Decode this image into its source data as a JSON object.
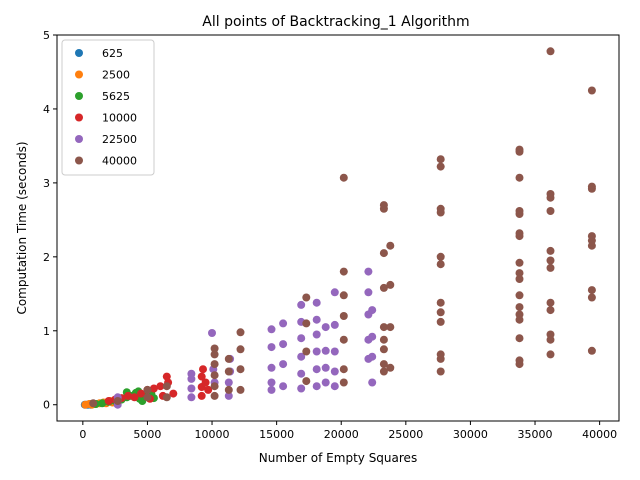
{
  "chart_data": {
    "type": "scatter",
    "title": "All points of Backtracking_1 Algorithm",
    "xlabel": "Number of Empty Squares",
    "ylabel": "Computation Time (seconds)",
    "xlim": [
      -2000,
      41500
    ],
    "ylim": [
      -0.22,
      5.0
    ],
    "xticks": [
      0,
      5000,
      10000,
      15000,
      20000,
      25000,
      30000,
      35000,
      40000
    ],
    "yticks": [
      0,
      1,
      2,
      3,
      4,
      5
    ],
    "grid": false,
    "legend_position": "top-left",
    "series": [
      {
        "name": "625",
        "color": "#1f77b4",
        "points": [
          [
            150,
            0.0
          ],
          [
            300,
            0.0
          ],
          [
            400,
            0.0
          ],
          [
            550,
            0.01
          ],
          [
            600,
            0.0
          ]
        ]
      },
      {
        "name": "2500",
        "color": "#ff7f0e",
        "points": [
          [
            200,
            0.0
          ],
          [
            500,
            0.01
          ],
          [
            700,
            0.0
          ],
          [
            1000,
            0.01
          ],
          [
            1300,
            0.02
          ],
          [
            1600,
            0.03
          ],
          [
            1800,
            0.02
          ],
          [
            2100,
            0.05
          ],
          [
            2300,
            0.03
          ],
          [
            2450,
            0.06
          ]
        ]
      },
      {
        "name": "5625",
        "color": "#2ca02c",
        "points": [
          [
            1000,
            0.01
          ],
          [
            1500,
            0.02
          ],
          [
            2000,
            0.04
          ],
          [
            2500,
            0.05
          ],
          [
            3000,
            0.07
          ],
          [
            3400,
            0.1
          ],
          [
            3400,
            0.17
          ],
          [
            3700,
            0.12
          ],
          [
            4100,
            0.16
          ],
          [
            4300,
            0.18
          ],
          [
            4400,
            0.08
          ],
          [
            4600,
            0.05
          ],
          [
            4800,
            0.1
          ],
          [
            5000,
            0.12
          ],
          [
            5300,
            0.15
          ],
          [
            5500,
            0.09
          ]
        ]
      },
      {
        "name": "10000",
        "color": "#d62728",
        "points": [
          [
            2000,
            0.05
          ],
          [
            2500,
            0.07
          ],
          [
            3000,
            0.09
          ],
          [
            3500,
            0.12
          ],
          [
            4000,
            0.1
          ],
          [
            4500,
            0.15
          ],
          [
            5000,
            0.2
          ],
          [
            5200,
            0.08
          ],
          [
            5500,
            0.22
          ],
          [
            6000,
            0.25
          ],
          [
            6200,
            0.12
          ],
          [
            6500,
            0.38
          ],
          [
            6600,
            0.3
          ],
          [
            7000,
            0.15
          ],
          [
            9200,
            0.12
          ],
          [
            9200,
            0.24
          ],
          [
            9200,
            0.38
          ],
          [
            9300,
            0.48
          ],
          [
            9500,
            0.3
          ],
          [
            9700,
            0.2
          ]
        ]
      },
      {
        "name": "22500",
        "color": "#9467bd",
        "points": [
          [
            2700,
            0.0
          ],
          [
            2700,
            0.05
          ],
          [
            2700,
            0.1
          ],
          [
            8400,
            0.1
          ],
          [
            8400,
            0.22
          ],
          [
            8400,
            0.35
          ],
          [
            8400,
            0.42
          ],
          [
            10000,
            0.97
          ],
          [
            10100,
            0.48
          ],
          [
            10200,
            0.3
          ],
          [
            11300,
            0.12
          ],
          [
            11300,
            0.3
          ],
          [
            11400,
            0.45
          ],
          [
            11400,
            0.62
          ],
          [
            14600,
            0.2
          ],
          [
            14600,
            0.3
          ],
          [
            14600,
            0.5
          ],
          [
            14600,
            0.78
          ],
          [
            14600,
            1.02
          ],
          [
            15500,
            0.25
          ],
          [
            15500,
            0.55
          ],
          [
            15500,
            0.82
          ],
          [
            15500,
            1.1
          ],
          [
            16900,
            0.22
          ],
          [
            16900,
            0.42
          ],
          [
            16900,
            0.65
          ],
          [
            16900,
            0.9
          ],
          [
            16900,
            1.12
          ],
          [
            16900,
            1.35
          ],
          [
            18100,
            0.25
          ],
          [
            18100,
            0.48
          ],
          [
            18100,
            0.72
          ],
          [
            18100,
            0.95
          ],
          [
            18100,
            1.15
          ],
          [
            18100,
            1.38
          ],
          [
            18800,
            0.3
          ],
          [
            18800,
            0.5
          ],
          [
            18800,
            0.73
          ],
          [
            18800,
            1.05
          ],
          [
            19500,
            0.25
          ],
          [
            19500,
            0.45
          ],
          [
            19500,
            0.72
          ],
          [
            19500,
            1.08
          ],
          [
            19500,
            1.52
          ],
          [
            22100,
            0.62
          ],
          [
            22100,
            0.88
          ],
          [
            22100,
            1.22
          ],
          [
            22100,
            1.52
          ],
          [
            22100,
            1.8
          ],
          [
            22400,
            0.3
          ],
          [
            22400,
            0.65
          ],
          [
            22400,
            0.92
          ],
          [
            22400,
            1.28
          ]
        ]
      },
      {
        "name": "40000",
        "color": "#8c564b",
        "points": [
          [
            800,
            0.02
          ],
          [
            2700,
            0.05
          ],
          [
            5000,
            0.1
          ],
          [
            5000,
            0.2
          ],
          [
            6500,
            0.1
          ],
          [
            6500,
            0.25
          ],
          [
            10200,
            0.12
          ],
          [
            10200,
            0.25
          ],
          [
            10200,
            0.4
          ],
          [
            10200,
            0.55
          ],
          [
            10200,
            0.68
          ],
          [
            10200,
            0.76
          ],
          [
            11300,
            0.2
          ],
          [
            11300,
            0.45
          ],
          [
            11300,
            0.62
          ],
          [
            12200,
            0.2
          ],
          [
            12200,
            0.48
          ],
          [
            12200,
            0.75
          ],
          [
            12200,
            0.98
          ],
          [
            17300,
            0.32
          ],
          [
            17300,
            0.72
          ],
          [
            17300,
            1.1
          ],
          [
            17300,
            1.45
          ],
          [
            20200,
            0.3
          ],
          [
            20200,
            0.48
          ],
          [
            20200,
            0.88
          ],
          [
            20200,
            1.2
          ],
          [
            20200,
            1.48
          ],
          [
            20200,
            1.8
          ],
          [
            20200,
            3.07
          ],
          [
            23300,
            0.45
          ],
          [
            23300,
            0.55
          ],
          [
            23300,
            0.75
          ],
          [
            23300,
            0.88
          ],
          [
            23300,
            1.05
          ],
          [
            23300,
            1.58
          ],
          [
            23300,
            2.05
          ],
          [
            23300,
            2.65
          ],
          [
            23300,
            2.7
          ],
          [
            23800,
            0.5
          ],
          [
            23800,
            1.05
          ],
          [
            23800,
            1.62
          ],
          [
            23800,
            2.15
          ],
          [
            27700,
            0.45
          ],
          [
            27700,
            0.62
          ],
          [
            27700,
            0.68
          ],
          [
            27700,
            1.12
          ],
          [
            27700,
            1.25
          ],
          [
            27700,
            1.38
          ],
          [
            27700,
            1.9
          ],
          [
            27700,
            2.0
          ],
          [
            27700,
            2.6
          ],
          [
            27700,
            2.65
          ],
          [
            27700,
            3.22
          ],
          [
            27700,
            3.32
          ],
          [
            33800,
            0.55
          ],
          [
            33800,
            0.6
          ],
          [
            33800,
            0.9
          ],
          [
            33800,
            1.15
          ],
          [
            33800,
            1.22
          ],
          [
            33800,
            1.32
          ],
          [
            33800,
            1.48
          ],
          [
            33800,
            1.7
          ],
          [
            33800,
            1.78
          ],
          [
            33800,
            1.92
          ],
          [
            33800,
            2.28
          ],
          [
            33800,
            2.32
          ],
          [
            33800,
            2.58
          ],
          [
            33800,
            2.62
          ],
          [
            33800,
            3.07
          ],
          [
            33800,
            3.42
          ],
          [
            33800,
            3.45
          ],
          [
            36200,
            0.68
          ],
          [
            36200,
            0.88
          ],
          [
            36200,
            0.95
          ],
          [
            36200,
            1.28
          ],
          [
            36200,
            1.38
          ],
          [
            36200,
            1.85
          ],
          [
            36200,
            1.95
          ],
          [
            36200,
            2.08
          ],
          [
            36200,
            2.62
          ],
          [
            36200,
            2.8
          ],
          [
            36200,
            2.85
          ],
          [
            36200,
            4.78
          ],
          [
            39400,
            0.73
          ],
          [
            39400,
            1.45
          ],
          [
            39400,
            1.55
          ],
          [
            39400,
            2.15
          ],
          [
            39400,
            2.22
          ],
          [
            39400,
            2.28
          ],
          [
            39400,
            2.92
          ],
          [
            39400,
            2.95
          ],
          [
            39400,
            4.25
          ]
        ]
      }
    ]
  }
}
